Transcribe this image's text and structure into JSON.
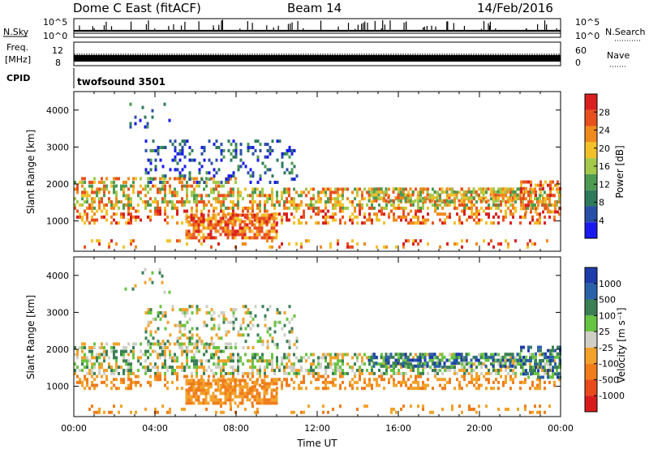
{
  "header": {
    "station": "Dome C East (fitACF)",
    "beam": "Beam 14",
    "date": "14/Feb/2016"
  },
  "panels": {
    "nsky": {
      "label": "N.Sky",
      "right_label": "N.Search",
      "left_ticks": [
        "10^5",
        "10^0"
      ],
      "right_ticks": [
        "10^5",
        "10^0"
      ]
    },
    "freq": {
      "label_line1": "Freq.",
      "label_line2": "[MHz]",
      "right_label": "Nave",
      "left_ticks": [
        "12",
        "8"
      ],
      "right_ticks": [
        "60",
        "0"
      ]
    },
    "cpid": {
      "label": "CPID",
      "program": "twofsound 3501"
    }
  },
  "colors": {
    "power_scale": [
      "#1a1aee",
      "#2a4fa8",
      "#2f7a5c",
      "#4d9a53",
      "#a3c84a",
      "#f2c12a",
      "#f08a1e",
      "#e8501f",
      "#d91f1f"
    ],
    "velocity_scale": [
      "#1e3caa",
      "#2a62a8",
      "#3b7f55",
      "#67c442",
      "#cfcfc6",
      "#f2a22a",
      "#f07c1a",
      "#e84a1c",
      "#d81c1c"
    ]
  },
  "chart_data": [
    {
      "type": "heatmap",
      "name": "power",
      "ylabel": "Slant Range [km]",
      "yticks": [
        1000,
        2000,
        3000,
        4000
      ],
      "ylim": [
        180,
        4500
      ],
      "xlabel": "",
      "xlim": [
        0,
        24
      ],
      "xticks": [
        "00:00",
        "04:00",
        "08:00",
        "12:00",
        "16:00",
        "20:00",
        "00:00"
      ],
      "colorbar": {
        "label": "Power [dB]",
        "range": [
          0,
          32
        ],
        "ticks": [
          "4",
          "8",
          "12",
          "16",
          "20",
          "24",
          "28"
        ]
      }
    },
    {
      "type": "heatmap",
      "name": "velocity",
      "ylabel": "Slant Range [km]",
      "yticks": [
        1000,
        2000,
        3000,
        4000
      ],
      "ylim": [
        180,
        4500
      ],
      "xlabel": "Time UT",
      "xlim": [
        0,
        24
      ],
      "xticks": [
        "00:00",
        "04:00",
        "08:00",
        "12:00",
        "16:00",
        "20:00",
        "00:00"
      ],
      "colorbar": {
        "label": "Velocity [m s⁻¹]",
        "ticks": [
          "1000",
          "500",
          "100",
          "25",
          "-25",
          "-100",
          "-500",
          "-1000"
        ]
      }
    }
  ]
}
